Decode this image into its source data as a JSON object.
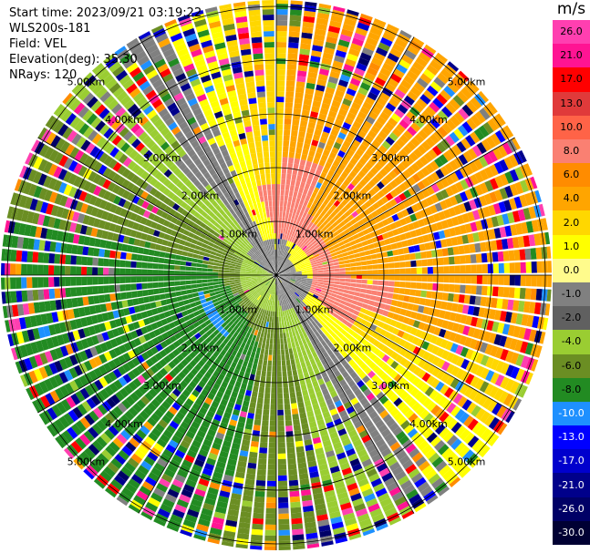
{
  "header": {
    "start_time": "Start time: 2023/09/21 03:19:22",
    "site": "WLS200s-181",
    "field": "Field: VEL",
    "elevation": "Elevation(deg): 35.30",
    "nrays": "NRays: 120"
  },
  "colorbar": {
    "unit": "m/s",
    "ticks": [
      "26.0",
      "21.0",
      "17.0",
      "13.0",
      "10.0",
      "8.0",
      "6.0",
      "4.0",
      "2.0",
      "1.0",
      "0.0",
      "-1.0",
      "-2.0",
      "-4.0",
      "-6.0",
      "-8.0",
      "-10.0",
      "-13.0",
      "-17.0",
      "-21.0",
      "-26.0",
      "-30.0"
    ],
    "colors": [
      "#ff3fb0",
      "#ff1493",
      "#ff0000",
      "#e03a3a",
      "#ff6347",
      "#fa8072",
      "#ff8c00",
      "#ffa500",
      "#ffd700",
      "#ffff00",
      "#fffb8c",
      "#808080",
      "#606060",
      "#9acd32",
      "#6b8e23",
      "#228b22",
      "#1e90ff",
      "#0000ff",
      "#0000cd",
      "#00008b",
      "#000066",
      "#000033"
    ]
  },
  "chart_data": {
    "type": "heatmap",
    "projection": "polar PPI",
    "field": "VEL",
    "unit": "m/s",
    "n_rays": 120,
    "range_rings_km": [
      1.0,
      2.0,
      3.0,
      4.0,
      5.0
    ],
    "ring_labels": [
      "1.00km",
      "2.00km",
      "3.00km",
      "4.00km",
      "5.00km"
    ],
    "value_range": [
      -30.0,
      26.0
    ],
    "pattern": "Positive (receding) velocities in the east and north-east half, negative (approaching) velocities in the west and south-west half; noisy returns at far range.",
    "grid": true
  }
}
